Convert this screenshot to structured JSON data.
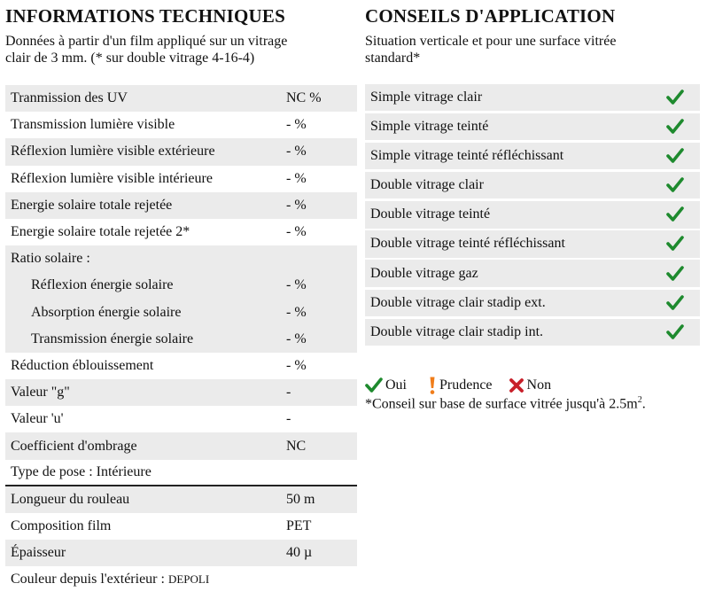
{
  "left": {
    "title": "INFORMATIONS TECHNIQUES",
    "subtitle_line1": "Données à partir d'un film appliqué sur un vitrage",
    "subtitle_line2": "clair de 3 mm. (* sur double vitrage 4-16-4)",
    "rows": [
      {
        "label": "Tranmission des UV",
        "value": "NC %"
      },
      {
        "label": "Transmission lumière visible",
        "value": " - %"
      },
      {
        "label": "Réflexion lumière visible extérieure",
        "value": " - %"
      },
      {
        "label": "Réflexion lumière visible intérieure",
        "value": " - %"
      },
      {
        "label": "Energie solaire totale rejetée",
        "value": " - %"
      },
      {
        "label": "Energie solaire totale rejetée 2*",
        "value": " - %"
      },
      {
        "label": "Ratio solaire :",
        "value": ""
      },
      {
        "label": "Réflexion énergie solaire",
        "value": " - %"
      },
      {
        "label": "Absorption énergie solaire",
        "value": " - %"
      },
      {
        "label": "Transmission énergie solaire",
        "value": " - %"
      },
      {
        "label": "Réduction éblouissement",
        "value": " - %"
      },
      {
        "label": "Valeur \"g\"",
        "value": " -"
      },
      {
        "label": "Valeur 'u'",
        "value": " -"
      },
      {
        "label": "Coefficient d'ombrage",
        "value": "NC"
      },
      {
        "label": "Type de pose : Intérieure",
        "value": ""
      },
      {
        "label": "Longueur du rouleau",
        "value": "50 m"
      },
      {
        "label": "Composition film",
        "value": "PET"
      },
      {
        "label": "Épaisseur",
        "value": "40 µ"
      }
    ],
    "couleur_label": "Couleur depuis l'extérieur : ",
    "couleur_value": "DEPOLI"
  },
  "right": {
    "title": "CONSEILS D'APPLICATION",
    "subtitle_line1": "Situation verticale et pour une surface vitrée",
    "subtitle_line2": "standard*",
    "rows": [
      {
        "label": "Simple vitrage clair"
      },
      {
        "label": "Simple vitrage teinté"
      },
      {
        "label": "Simple vitrage teinté réfléchissant"
      },
      {
        "label": "Double vitrage clair"
      },
      {
        "label": "Double vitrage teinté"
      },
      {
        "label": "Double vitrage teinté réfléchissant"
      },
      {
        "label": "Double vitrage gaz"
      },
      {
        "label": "Double vitrage clair stadip ext."
      },
      {
        "label": "Double vitrage clair stadip int."
      }
    ],
    "legend": {
      "oui": "Oui",
      "prudence": "Prudence",
      "non": "Non"
    },
    "note": "*Conseil sur base de surface vitrée jusqu'à 2.5m",
    "note_sup": "2",
    "note_end": "."
  },
  "colors": {
    "check": "#1e8a2e",
    "prudence": "#f07d1a",
    "non": "#c8202a",
    "row_bg": "#ebebeb"
  }
}
